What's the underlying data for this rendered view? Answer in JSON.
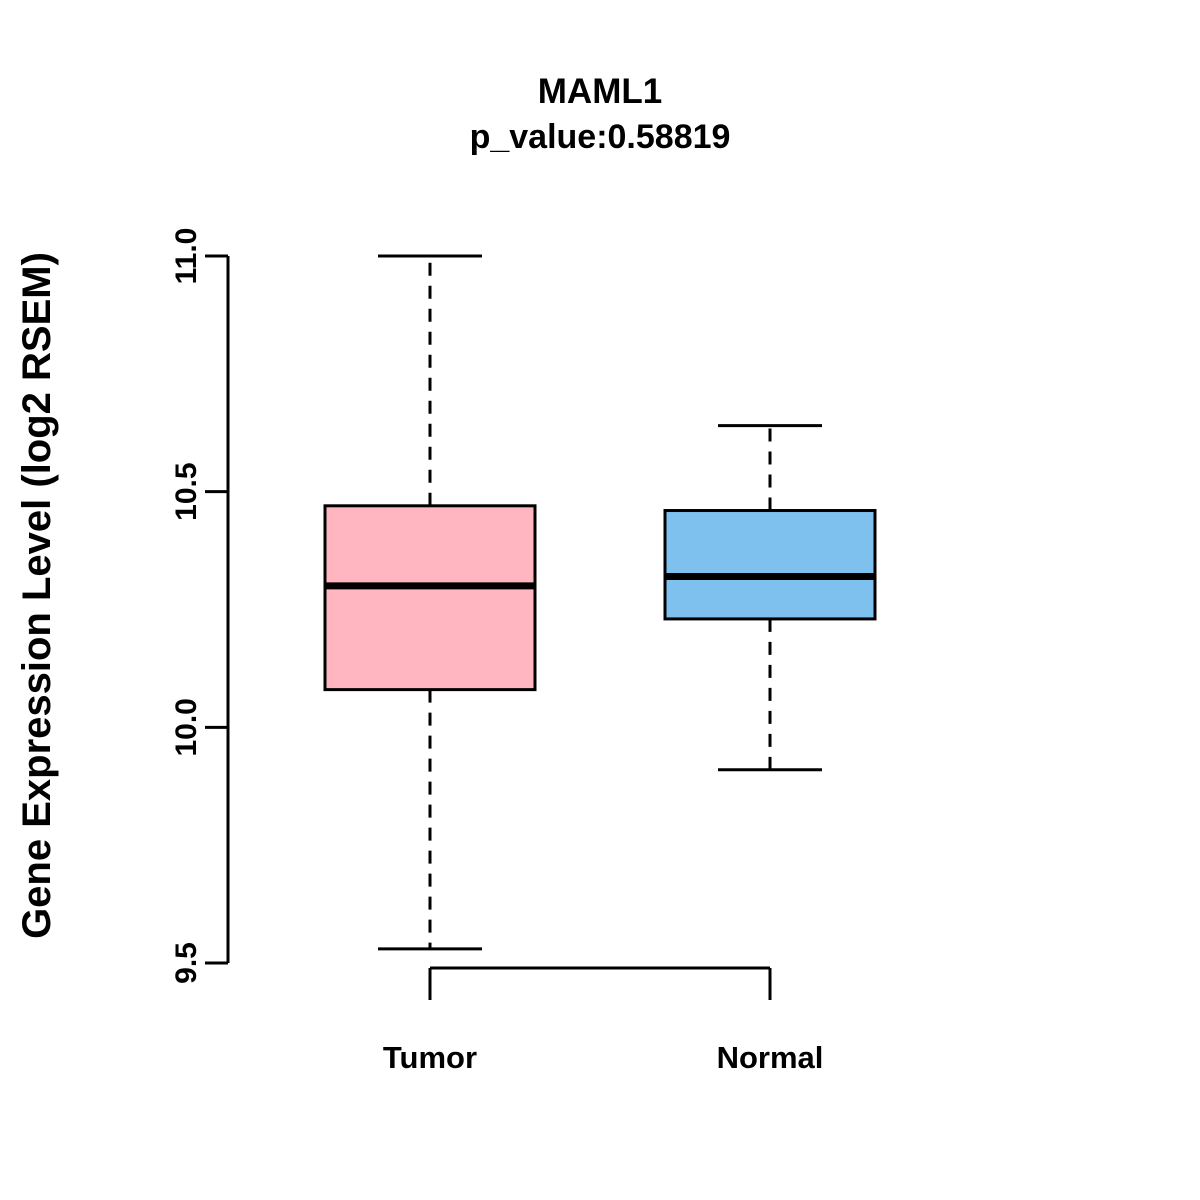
{
  "header": {
    "title": "MAML1",
    "subtitle": "p_value:0.58819"
  },
  "axes": {
    "ylabel": "Gene Expression Level (log2 RSEM)"
  },
  "chart_data": {
    "type": "boxplot",
    "title": "MAML1",
    "subtitle": "p_value:0.58819",
    "p_value": 0.58819,
    "gene": "MAML1",
    "ylabel": "Gene Expression Level (log2 RSEM)",
    "xlabel": "",
    "categories": [
      "Tumor",
      "Normal"
    ],
    "yticks": [
      9.5,
      10.0,
      10.5,
      11.0
    ],
    "ylim": [
      9.5,
      11.0
    ],
    "grid": false,
    "legend": "none",
    "series": [
      {
        "name": "Tumor",
        "color": "#FFB6C1",
        "min": 9.53,
        "q1": 10.08,
        "median": 10.3,
        "q3": 10.47,
        "max": 11.0
      },
      {
        "name": "Normal",
        "color": "#7EC0EE",
        "min": 9.91,
        "q1": 10.23,
        "median": 10.32,
        "q3": 10.46,
        "max": 10.64
      }
    ]
  }
}
